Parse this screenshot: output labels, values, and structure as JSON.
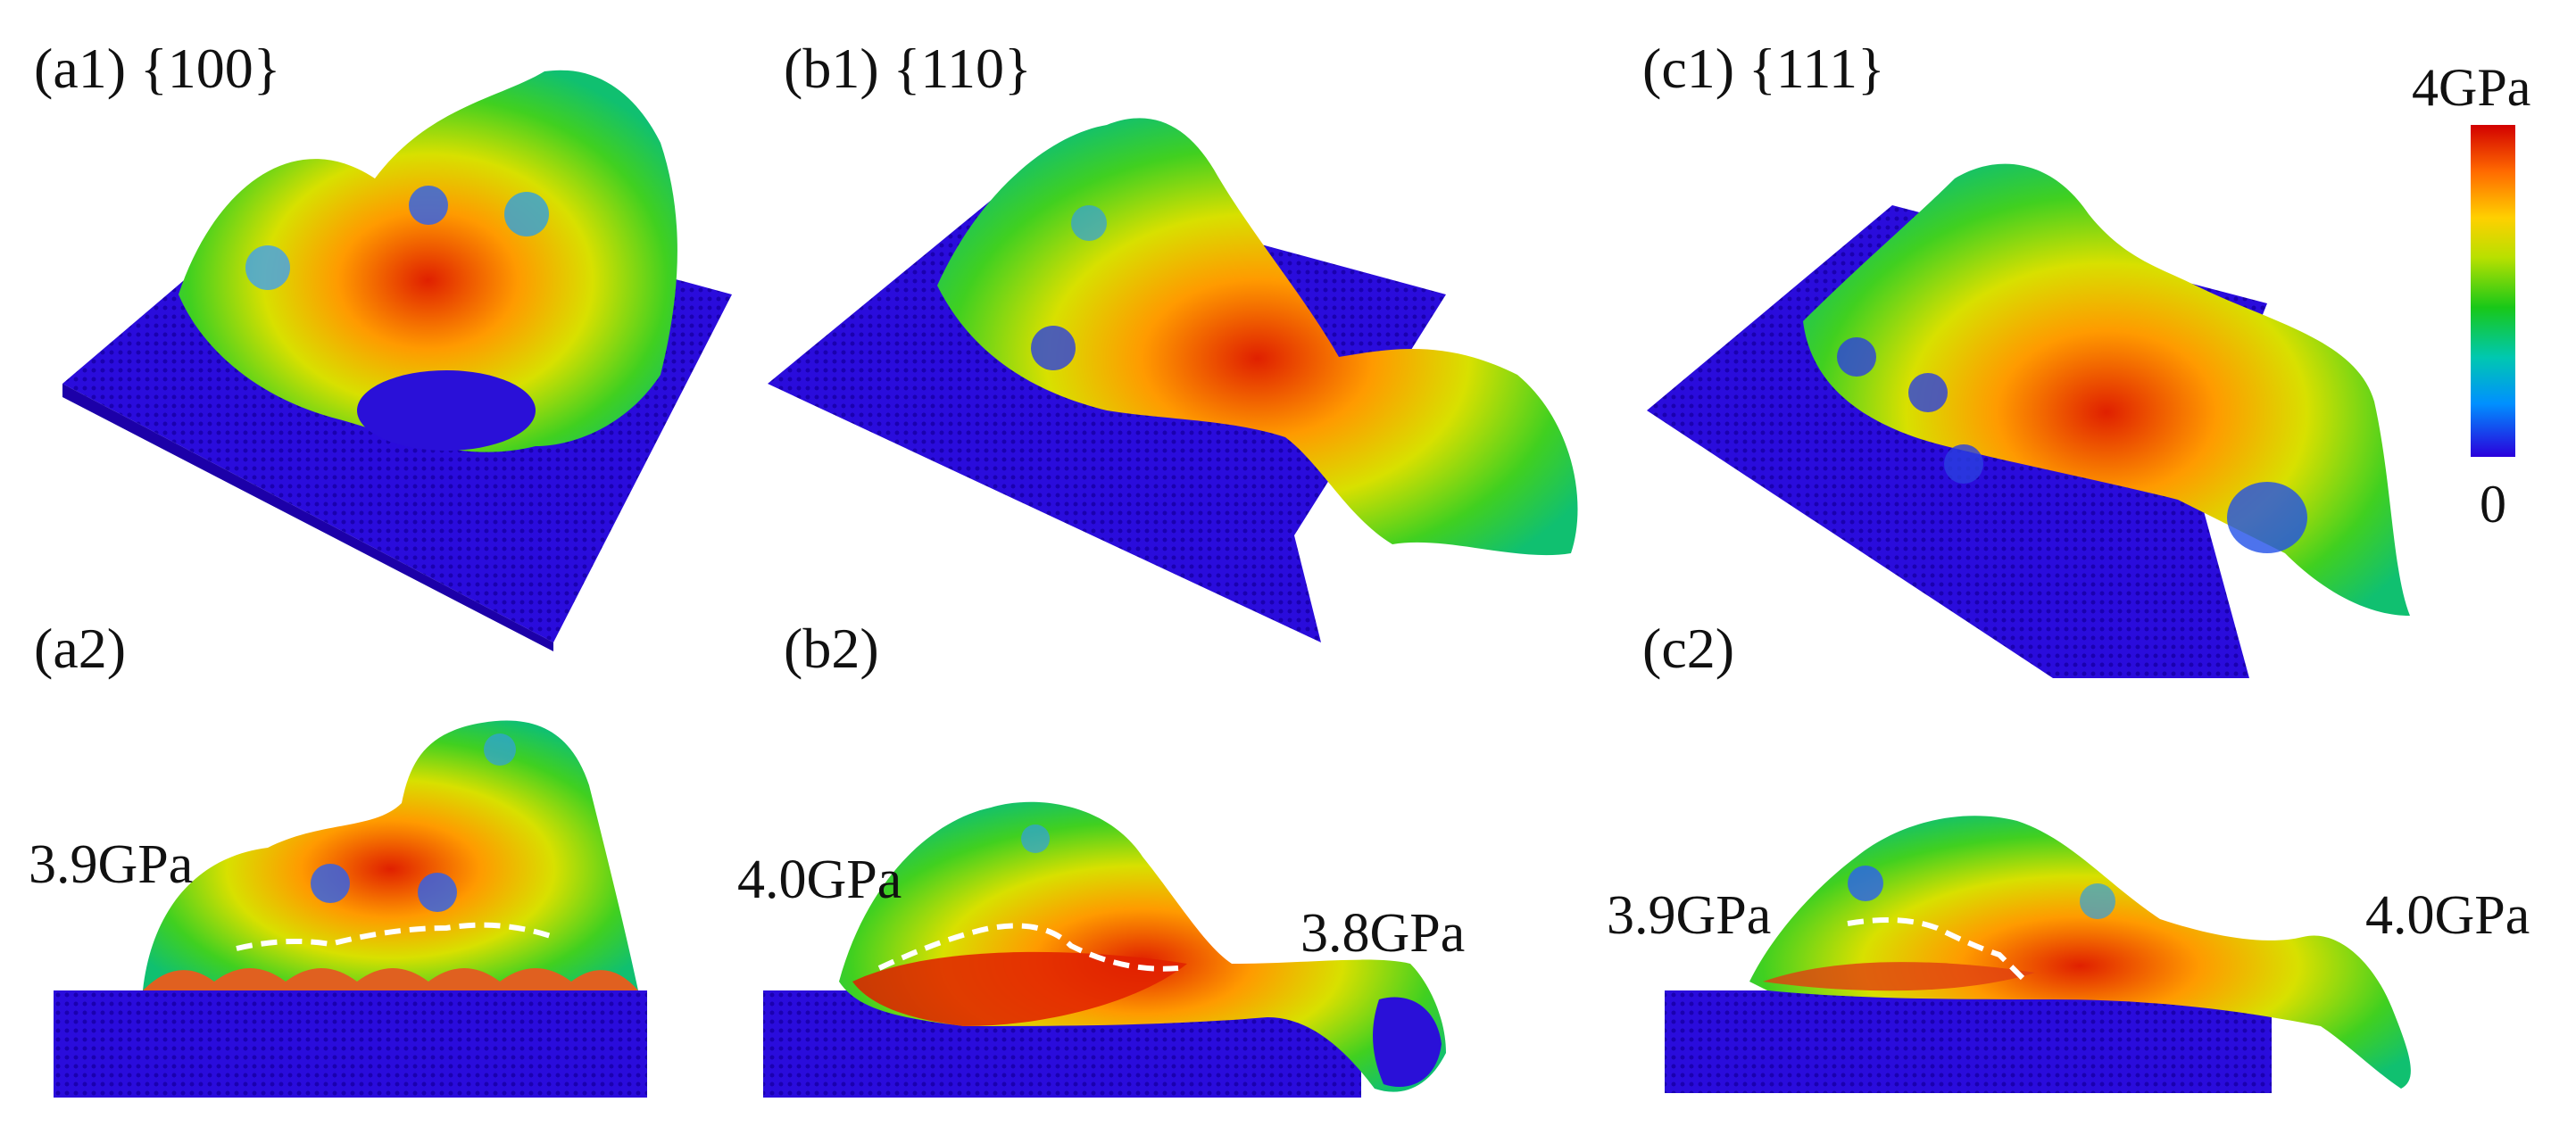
{
  "panels": {
    "a1": "(a1) {100}",
    "b1": "(b1) {110}",
    "c1": "(c1) {111}",
    "a2": "(a2)",
    "b2": "(b2)",
    "c2": "(c2)"
  },
  "annotations": {
    "a2_left": "3.9GPa",
    "b2_left": "4.0GPa",
    "b2_right": "3.8GPa",
    "c2_left": "3.9GPa",
    "c2_right": "4.0GPa"
  },
  "colorbar": {
    "max_label": "4GPa",
    "min_label": "0",
    "colors": [
      "#d20000",
      "#ff6a00",
      "#ffd000",
      "#18c818",
      "#00c8b0",
      "#0090ff",
      "#2a00dc"
    ]
  }
}
